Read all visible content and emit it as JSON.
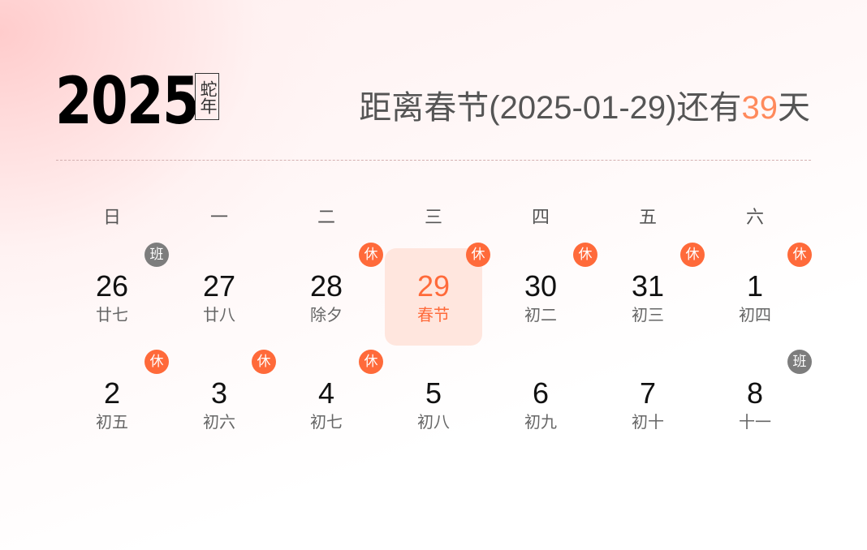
{
  "header": {
    "year": "2025",
    "zodiac": "蛇年",
    "countdown_prefix": "距离春节(2025-01-29)还有",
    "countdown_days": "39",
    "countdown_suffix": "天"
  },
  "weekdays": [
    "日",
    "一",
    "二",
    "三",
    "四",
    "五",
    "六"
  ],
  "colors": {
    "accent": "#ff6a3a",
    "rest_badge": "#ff6a3a",
    "work_badge": "#7d7d7d",
    "selected_bg": "#ffe6de"
  },
  "weeks": [
    [
      {
        "day": "26",
        "lunar": "廿七",
        "badge": "班",
        "type": "work"
      },
      {
        "day": "27",
        "lunar": "廿八"
      },
      {
        "day": "28",
        "lunar": "除夕",
        "badge": "休",
        "type": "rest"
      },
      {
        "day": "29",
        "lunar": "春节",
        "badge": "休",
        "type": "rest",
        "selected": true
      },
      {
        "day": "30",
        "lunar": "初二",
        "badge": "休",
        "type": "rest"
      },
      {
        "day": "31",
        "lunar": "初三",
        "badge": "休",
        "type": "rest"
      },
      {
        "day": "1",
        "lunar": "初四",
        "badge": "休",
        "type": "rest"
      }
    ],
    [
      {
        "day": "2",
        "lunar": "初五",
        "badge": "休",
        "type": "rest"
      },
      {
        "day": "3",
        "lunar": "初六",
        "badge": "休",
        "type": "rest"
      },
      {
        "day": "4",
        "lunar": "初七",
        "badge": "休",
        "type": "rest"
      },
      {
        "day": "5",
        "lunar": "初八"
      },
      {
        "day": "6",
        "lunar": "初九"
      },
      {
        "day": "7",
        "lunar": "初十"
      },
      {
        "day": "8",
        "lunar": "十一",
        "badge": "班",
        "type": "work"
      }
    ]
  ]
}
